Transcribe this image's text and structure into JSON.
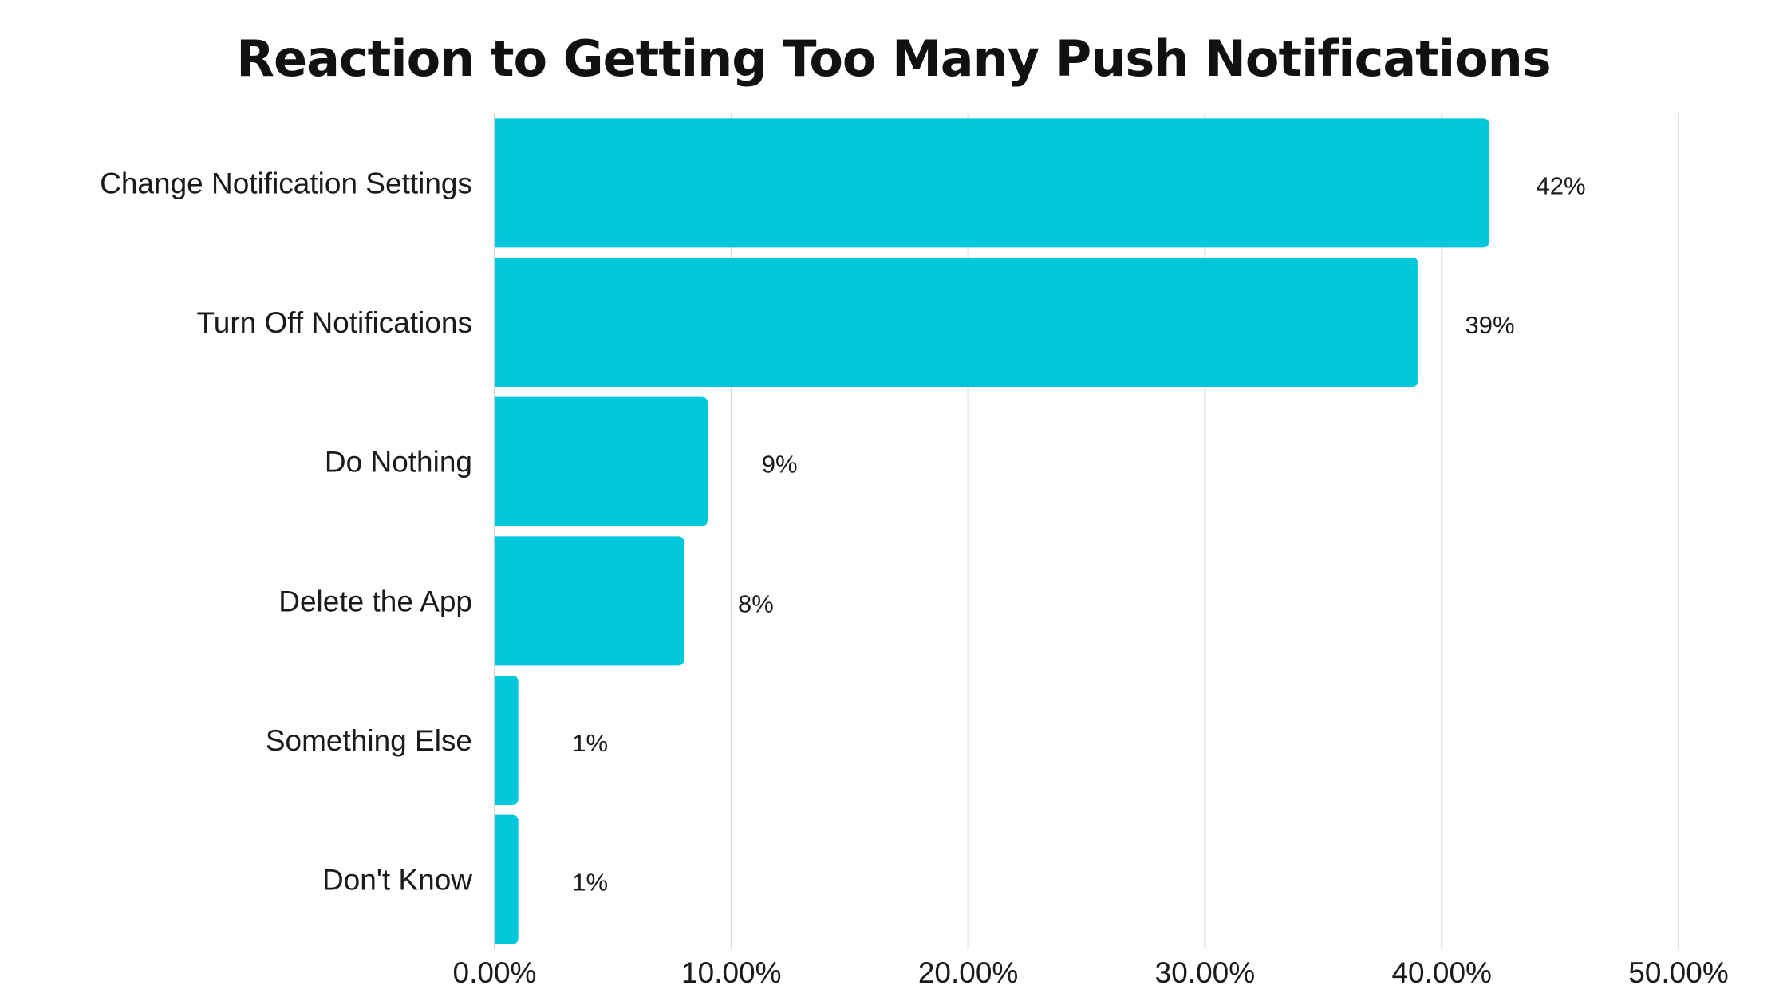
{
  "chart_data": {
    "type": "bar",
    "orientation": "horizontal",
    "title": "Reaction to Getting Too Many Push Notifications",
    "categories": [
      "Change Notification Settings",
      "Turn Off Notifications",
      "Do Nothing",
      "Delete the App",
      "Something Else",
      "Don't Know"
    ],
    "values": [
      42,
      39,
      9,
      8,
      1,
      1
    ],
    "value_labels": [
      "42%",
      "39%",
      "9%",
      "8%",
      "1%",
      "1%"
    ],
    "xlim": [
      0,
      50
    ],
    "x_ticks": [
      0,
      10,
      20,
      30,
      40,
      50
    ],
    "x_tick_labels": [
      "0.00%",
      "10.00%",
      "20.00%",
      "30.00%",
      "40.00%",
      "50.00%"
    ],
    "grid": true,
    "legend": "none",
    "bar_color": "#00C8DA"
  }
}
